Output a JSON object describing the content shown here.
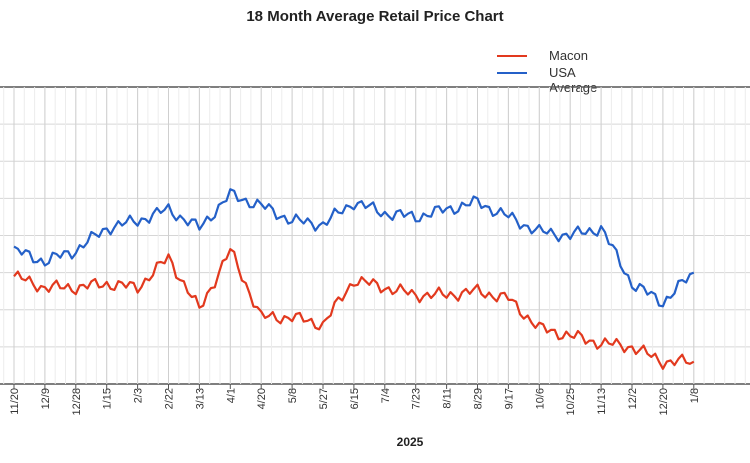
{
  "chart_data": {
    "type": "line",
    "title": "18 Month Average Retail Price Chart",
    "xlabel": "2025",
    "ylabel": "",
    "categories": [
      "11/20",
      "12/9",
      "12/28",
      "1/15",
      "2/3",
      "2/22",
      "3/13",
      "4/1",
      "4/20",
      "5/8",
      "5/27",
      "6/15",
      "7/4",
      "7/23",
      "8/11",
      "8/29",
      "9/17",
      "10/6",
      "10/25",
      "11/13",
      "12/2",
      "12/20",
      "1/8"
    ],
    "series": [
      {
        "name": "Macon",
        "color": "#e2391e",
        "values": [
          3.09,
          3.06,
          3.06,
          3.07,
          3.06,
          3.14,
          3.0,
          3.16,
          2.98,
          2.98,
          2.96,
          3.08,
          3.06,
          3.04,
          3.04,
          3.05,
          3.03,
          2.95,
          2.93,
          2.91,
          2.9,
          2.86,
          2.86
        ]
      },
      {
        "name": "USA Average",
        "color": "#2460c8",
        "values": [
          3.16,
          3.13,
          3.16,
          3.22,
          3.24,
          3.27,
          3.22,
          3.31,
          3.28,
          3.24,
          3.23,
          3.29,
          3.26,
          3.25,
          3.27,
          3.29,
          3.25,
          3.21,
          3.2,
          3.22,
          3.07,
          3.02,
          3.1
        ]
      }
    ],
    "ylim": [
      2.8,
      3.6
    ],
    "grid": true,
    "legend": "top-right"
  }
}
